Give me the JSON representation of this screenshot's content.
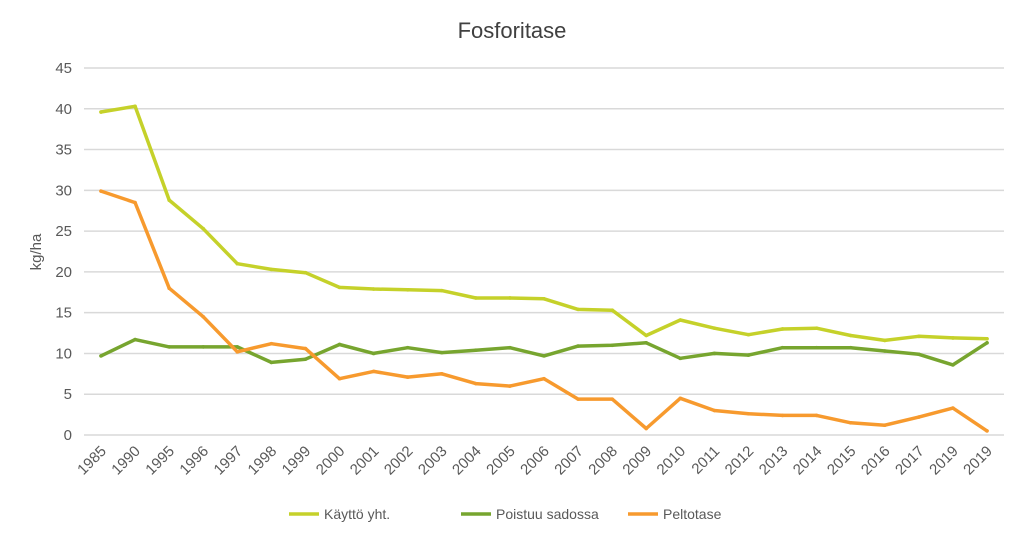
{
  "chart_data": {
    "type": "line",
    "title": "Fosforitase",
    "ylabel": "kg/ha",
    "xlabel": "",
    "ylim": [
      0,
      45
    ],
    "yticks": [
      0,
      5,
      10,
      15,
      20,
      25,
      30,
      35,
      40,
      45
    ],
    "grid": true,
    "legend": "bottom",
    "categories": [
      "1985",
      "1990",
      "1995",
      "1996",
      "1997",
      "1998",
      "1999",
      "2000",
      "2001",
      "2002",
      "2003",
      "2004",
      "2005",
      "2006",
      "2007",
      "2008",
      "2009",
      "2010",
      "2011",
      "2012",
      "2013",
      "2014",
      "2015",
      "2016",
      "2017",
      "2019",
      "2019"
    ],
    "series": [
      {
        "name": "Käyttö yht.",
        "color": "#C5D12A",
        "values": [
          39.6,
          40.3,
          28.8,
          25.3,
          21.0,
          20.3,
          19.9,
          18.1,
          17.9,
          17.8,
          17.7,
          16.8,
          16.8,
          16.7,
          15.4,
          15.3,
          12.2,
          14.1,
          13.1,
          12.3,
          13.0,
          13.1,
          12.2,
          11.6,
          12.1,
          11.9,
          11.8
        ]
      },
      {
        "name": "Poistuu sadossa",
        "color": "#77A52F",
        "values": [
          9.7,
          11.7,
          10.8,
          10.8,
          10.8,
          8.9,
          9.3,
          11.1,
          10.0,
          10.7,
          10.1,
          10.4,
          10.7,
          9.7,
          10.9,
          11.0,
          11.3,
          9.4,
          10.0,
          9.8,
          10.7,
          10.7,
          10.7,
          10.3,
          9.9,
          8.6,
          11.3
        ]
      },
      {
        "name": "Peltotase",
        "color": "#F79A2E",
        "values": [
          29.9,
          28.5,
          18.0,
          14.5,
          10.2,
          11.2,
          10.6,
          6.9,
          7.8,
          7.1,
          7.5,
          6.3,
          6.0,
          6.9,
          4.4,
          4.4,
          0.8,
          4.5,
          3.0,
          2.6,
          2.4,
          2.4,
          1.5,
          1.2,
          2.2,
          3.3,
          0.5
        ]
      }
    ]
  }
}
